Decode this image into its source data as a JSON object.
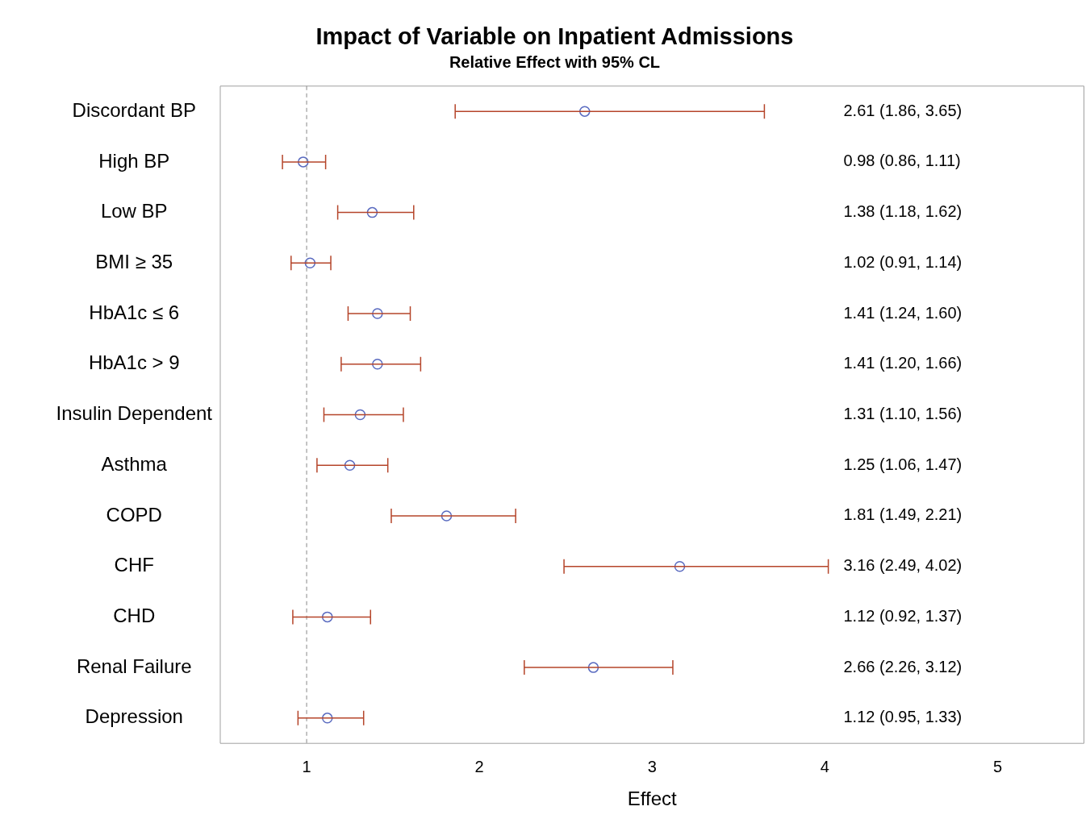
{
  "chart_data": {
    "type": "scatter",
    "title": "Impact of Variable on Inpatient Admissions",
    "subtitle": "Relative Effect with 95% CL",
    "xlabel": "Effect",
    "orientation": "horizontal",
    "categories": [
      "Discordant BP",
      "High BP",
      "Low BP",
      "BMI ≥ 35",
      "HbA1c ≤ 6",
      "HbA1c > 9",
      "Insulin Dependent",
      "Asthma",
      "COPD",
      "CHF",
      "CHD",
      "Renal Failure",
      "Depression"
    ],
    "values": [
      2.61,
      0.98,
      1.38,
      1.02,
      1.41,
      1.41,
      1.31,
      1.25,
      1.81,
      3.16,
      1.12,
      2.66,
      1.12
    ],
    "errors": [
      [
        1.86,
        3.65
      ],
      [
        0.86,
        1.11
      ],
      [
        1.18,
        1.62
      ],
      [
        0.91,
        1.14
      ],
      [
        1.24,
        1.6
      ],
      [
        1.2,
        1.66
      ],
      [
        1.1,
        1.56
      ],
      [
        1.06,
        1.47
      ],
      [
        1.49,
        2.21
      ],
      [
        2.49,
        4.02
      ],
      [
        0.92,
        1.37
      ],
      [
        2.26,
        3.12
      ],
      [
        0.95,
        1.33
      ]
    ],
    "annotations": [
      "2.61 (1.86, 3.65)",
      "0.98 (0.86, 1.11)",
      "1.38 (1.18, 1.62)",
      "1.02 (0.91, 1.14)",
      "1.41 (1.24, 1.60)",
      "1.41 (1.20, 1.66)",
      "1.31 (1.10, 1.56)",
      "1.25 (1.06, 1.47)",
      "1.81 (1.49, 2.21)",
      "3.16 (2.49, 4.02)",
      "1.12 (0.92, 1.37)",
      "2.66 (2.26, 3.12)",
      "1.12 (0.95, 1.33)"
    ],
    "color": "#5a6bc0",
    "marker": "circle",
    "legend": false,
    "grid": false,
    "xlim": [
      0.5,
      5.5
    ],
    "xticks": [
      1,
      2,
      3,
      4,
      5
    ],
    "ref_lines": [
      {
        "axis": "x",
        "value": 1,
        "label": null,
        "color": "#888888",
        "line_style": "dashed"
      }
    ]
  }
}
